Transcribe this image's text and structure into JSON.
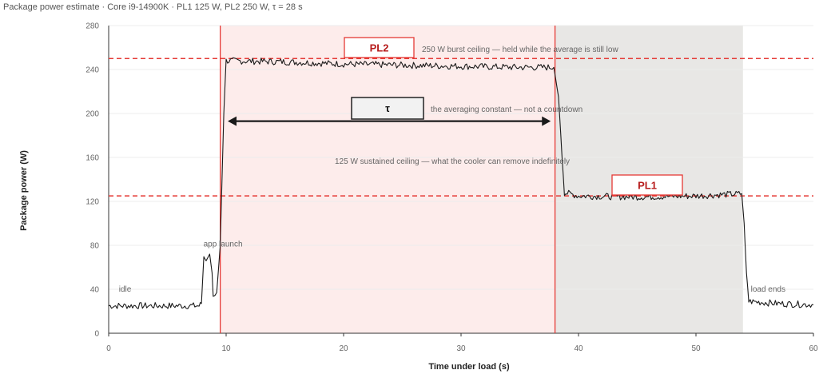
{
  "title": "Package power estimate · Core i9-14900K · PL1 125 W, PL2 250 W, τ = 28 s",
  "colors": {
    "pl2_region": "#fdeceb",
    "pl1_region": "#e8e7e5",
    "limit_line": "#e53935",
    "marker_line": "#e53935",
    "trace": "#1a1a1a",
    "tag_text": "#b71c1c",
    "tag_border": "#e53935",
    "tau_border": "#222222",
    "grid": "#ececec"
  },
  "chart_data": {
    "type": "line",
    "title": "Package power estimate · Core i9-14900K · PL1 125 W, PL2 250 W, τ = 28 s",
    "xlabel": "Time under load (s)",
    "ylabel": "Package power (W)",
    "xlim": [
      0,
      60
    ],
    "ylim": [
      0,
      280
    ],
    "x_ticks": [
      0,
      10,
      20,
      30,
      40,
      50,
      60
    ],
    "y_ticks": [
      0,
      40,
      80,
      120,
      160,
      200,
      240,
      280
    ],
    "grid": "horizontal",
    "series": [
      {
        "points": [
          [
            0,
            25
          ],
          [
            3,
            25
          ],
          [
            6,
            25
          ],
          [
            7.7,
            25
          ],
          [
            7.9,
            27
          ],
          [
            8.1,
            70
          ],
          [
            8.3,
            66
          ],
          [
            8.6,
            72
          ],
          [
            8.8,
            55
          ],
          [
            8.9,
            35
          ],
          [
            9.2,
            37
          ],
          [
            9.5,
            80
          ],
          [
            9.8,
            200
          ],
          [
            10,
            248
          ],
          [
            15,
            247
          ],
          [
            20,
            245
          ],
          [
            25,
            244
          ],
          [
            30,
            243
          ],
          [
            35,
            242
          ],
          [
            37.9,
            242
          ],
          [
            38.3,
            215
          ],
          [
            38.6,
            160
          ],
          [
            38.8,
            128
          ],
          [
            40,
            125
          ],
          [
            45,
            124
          ],
          [
            50,
            125
          ],
          [
            53.9,
            127
          ],
          [
            54.1,
            100
          ],
          [
            54.3,
            55
          ],
          [
            54.5,
            29
          ],
          [
            57,
            27
          ],
          [
            60,
            26
          ]
        ]
      }
    ],
    "regions": [
      {
        "label": "PL2",
        "x0": 9.5,
        "x1": 38
      },
      {
        "label": "PL1",
        "x0": 38,
        "x1": 54
      }
    ],
    "markers_x": [
      9.5,
      38
    ],
    "limit_lines": [
      {
        "y": 250,
        "tag": "PL2",
        "note": "250 W burst ceiling — held while the average is still low"
      },
      {
        "y": 125,
        "tag": "PL1",
        "note": "125 W sustained ceiling — what the cooler can remove indefinitely"
      }
    ],
    "tau": {
      "label": "τ",
      "x0": 10,
      "x1": 37.5,
      "y": 193,
      "note": "the averaging constant — not a countdown"
    },
    "annotations": [
      {
        "text": "idle",
        "x": 0.8,
        "y": 40
      },
      {
        "text": "app launch",
        "x": 8,
        "y": 81
      },
      {
        "text": "load ends",
        "x": 54.6,
        "y": 40
      }
    ]
  }
}
